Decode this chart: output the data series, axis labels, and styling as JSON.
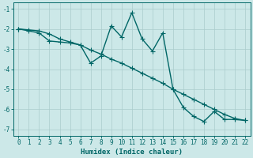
{
  "xlabel": "Humidex (Indice chaleur)",
  "background_color": "#cce8e8",
  "grid_color": "#aacccc",
  "line_color": "#006666",
  "xlim": [
    -0.5,
    22.5
  ],
  "ylim": [
    -7.3,
    -0.7
  ],
  "xticks": [
    0,
    1,
    2,
    3,
    4,
    5,
    6,
    7,
    8,
    9,
    10,
    11,
    12,
    13,
    14,
    15,
    16,
    17,
    18,
    19,
    20,
    21,
    22
  ],
  "yticks": [
    -7,
    -6,
    -5,
    -4,
    -3,
    -2,
    -1
  ],
  "series1_x": [
    0,
    1,
    2,
    3,
    4,
    5,
    6,
    7,
    8,
    9,
    10,
    11,
    12,
    13,
    14,
    15,
    16,
    17,
    18,
    19,
    20,
    21,
    22
  ],
  "series1_y": [
    -2.0,
    -2.05,
    -2.1,
    -2.25,
    -2.5,
    -2.65,
    -2.8,
    -3.05,
    -3.25,
    -3.5,
    -3.7,
    -3.95,
    -4.2,
    -4.45,
    -4.7,
    -5.0,
    -5.25,
    -5.5,
    -5.75,
    -6.0,
    -6.25,
    -6.45,
    -6.55
  ],
  "series2_x": [
    0,
    1,
    2,
    3,
    4,
    5,
    6,
    7,
    8,
    9,
    10,
    11,
    12,
    13,
    14,
    15,
    16,
    17,
    18,
    19,
    20,
    21,
    22
  ],
  "series2_y": [
    -2.0,
    -2.1,
    -2.2,
    -2.6,
    -2.65,
    -2.7,
    -2.8,
    -3.7,
    -3.35,
    -1.85,
    -2.4,
    -1.2,
    -2.5,
    -3.1,
    -2.2,
    -5.0,
    -5.9,
    -6.35,
    -6.6,
    -6.1,
    -6.5,
    -6.5,
    -6.55
  ],
  "marker": "+",
  "markersize": 4,
  "linewidth": 1.0
}
